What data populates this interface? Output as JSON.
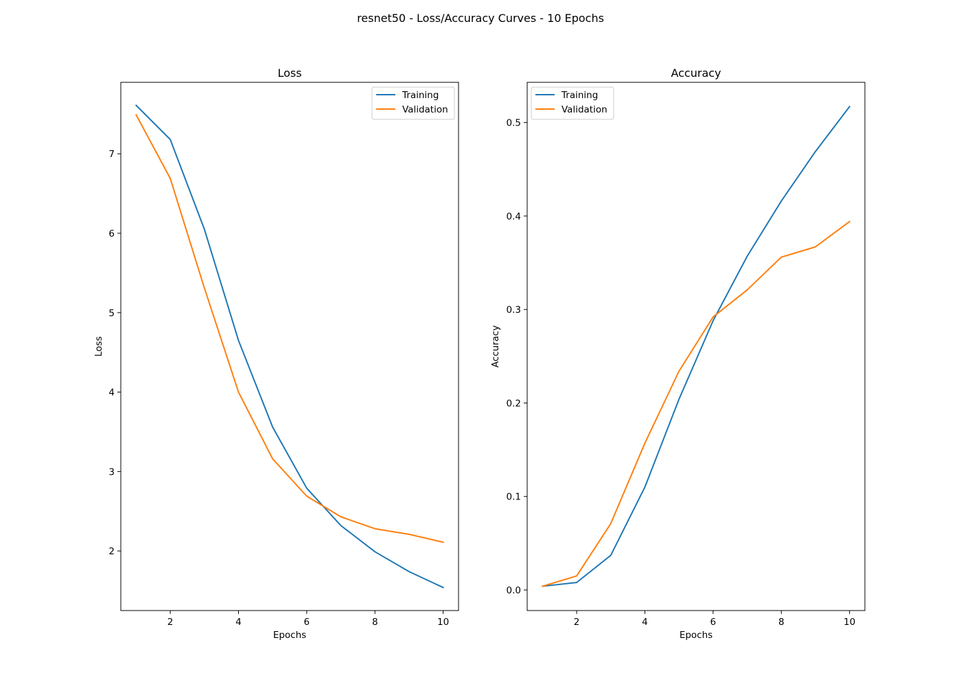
{
  "figure": {
    "suptitle": "resnet50 - Loss/Accuracy Curves - 10 Epochs"
  },
  "chart_data": [
    {
      "type": "line",
      "title": "Loss",
      "xlabel": "Epochs",
      "ylabel": "Loss",
      "x": [
        1,
        2,
        3,
        4,
        5,
        6,
        7,
        8,
        9,
        10
      ],
      "xlim": [
        0.55,
        10.45
      ],
      "ylim": [
        1.25,
        7.9
      ],
      "xticks": [
        2,
        4,
        6,
        8,
        10
      ],
      "yticks": [
        2,
        3,
        4,
        5,
        6,
        7
      ],
      "grid": false,
      "legend_position": "upper right",
      "series": [
        {
          "name": "Training",
          "color": "#1f77b4",
          "values": [
            7.61,
            7.18,
            6.05,
            4.65,
            3.56,
            2.79,
            2.32,
            1.99,
            1.74,
            1.54
          ]
        },
        {
          "name": "Validation",
          "color": "#ff7f0e",
          "values": [
            7.49,
            6.69,
            5.31,
            4.0,
            3.16,
            2.69,
            2.43,
            2.28,
            2.21,
            2.11
          ]
        }
      ]
    },
    {
      "type": "line",
      "title": "Accuracy",
      "xlabel": "Epochs",
      "ylabel": "Accuracy",
      "x": [
        1,
        2,
        3,
        4,
        5,
        6,
        7,
        8,
        9,
        10
      ],
      "xlim": [
        0.55,
        10.45
      ],
      "ylim": [
        -0.022,
        0.543
      ],
      "xticks": [
        2,
        4,
        6,
        8,
        10
      ],
      "yticks": [
        0.0,
        0.1,
        0.2,
        0.3,
        0.4,
        0.5
      ],
      "ytick_labels": [
        "0.0",
        "0.1",
        "0.2",
        "0.3",
        "0.4",
        "0.5"
      ],
      "grid": false,
      "legend_position": "upper left",
      "series": [
        {
          "name": "Training",
          "color": "#1f77b4",
          "values": [
            0.004,
            0.008,
            0.037,
            0.11,
            0.204,
            0.288,
            0.357,
            0.416,
            0.469,
            0.517
          ]
        },
        {
          "name": "Validation",
          "color": "#ff7f0e",
          "values": [
            0.004,
            0.015,
            0.071,
            0.157,
            0.234,
            0.292,
            0.321,
            0.356,
            0.367,
            0.394
          ]
        }
      ]
    }
  ]
}
